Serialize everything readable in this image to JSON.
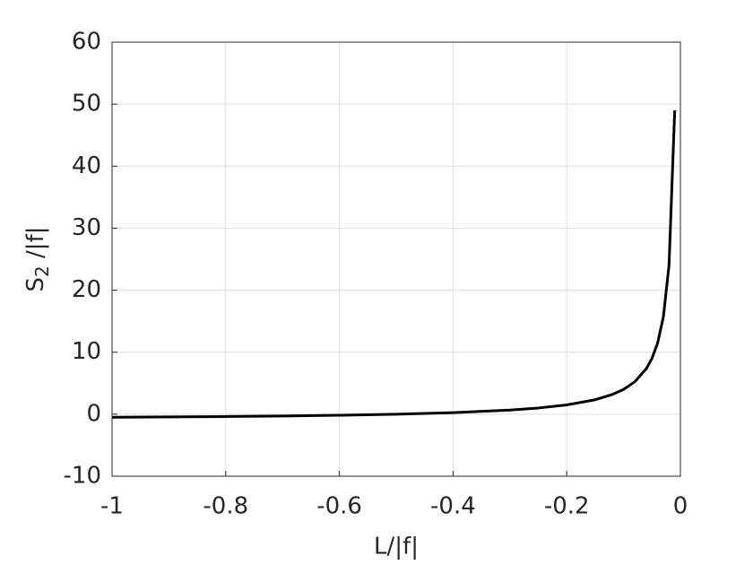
{
  "chart_data": {
    "type": "line",
    "xlabel": "L/|f|",
    "ylabel": {
      "base": "S",
      "subscript": "2",
      "rest": " /|f|"
    },
    "x": [
      -1,
      -0.9,
      -0.8,
      -0.7,
      -0.6,
      -0.5,
      -0.4,
      -0.3,
      -0.25,
      -0.2,
      -0.15,
      -0.12,
      -0.1,
      -0.08,
      -0.06,
      -0.05,
      -0.04,
      -0.03,
      -0.02,
      -0.01
    ],
    "series": [
      {
        "color": "#000000",
        "values": [
          -0.5,
          -0.44,
          -0.375,
          -0.29,
          -0.17,
          0,
          0.25,
          0.67,
          1,
          1.5,
          2.33,
          3.17,
          4,
          5.25,
          7.33,
          9,
          11.5,
          15.67,
          24,
          49
        ]
      }
    ],
    "xlim": [
      -1,
      0
    ],
    "xticks": [
      -1,
      -0.8,
      -0.6,
      -0.4,
      -0.2,
      0
    ],
    "ylim": [
      -10,
      60
    ],
    "yticks": [
      -10,
      0,
      10,
      20,
      30,
      40,
      50,
      60
    ],
    "grid": true
  }
}
